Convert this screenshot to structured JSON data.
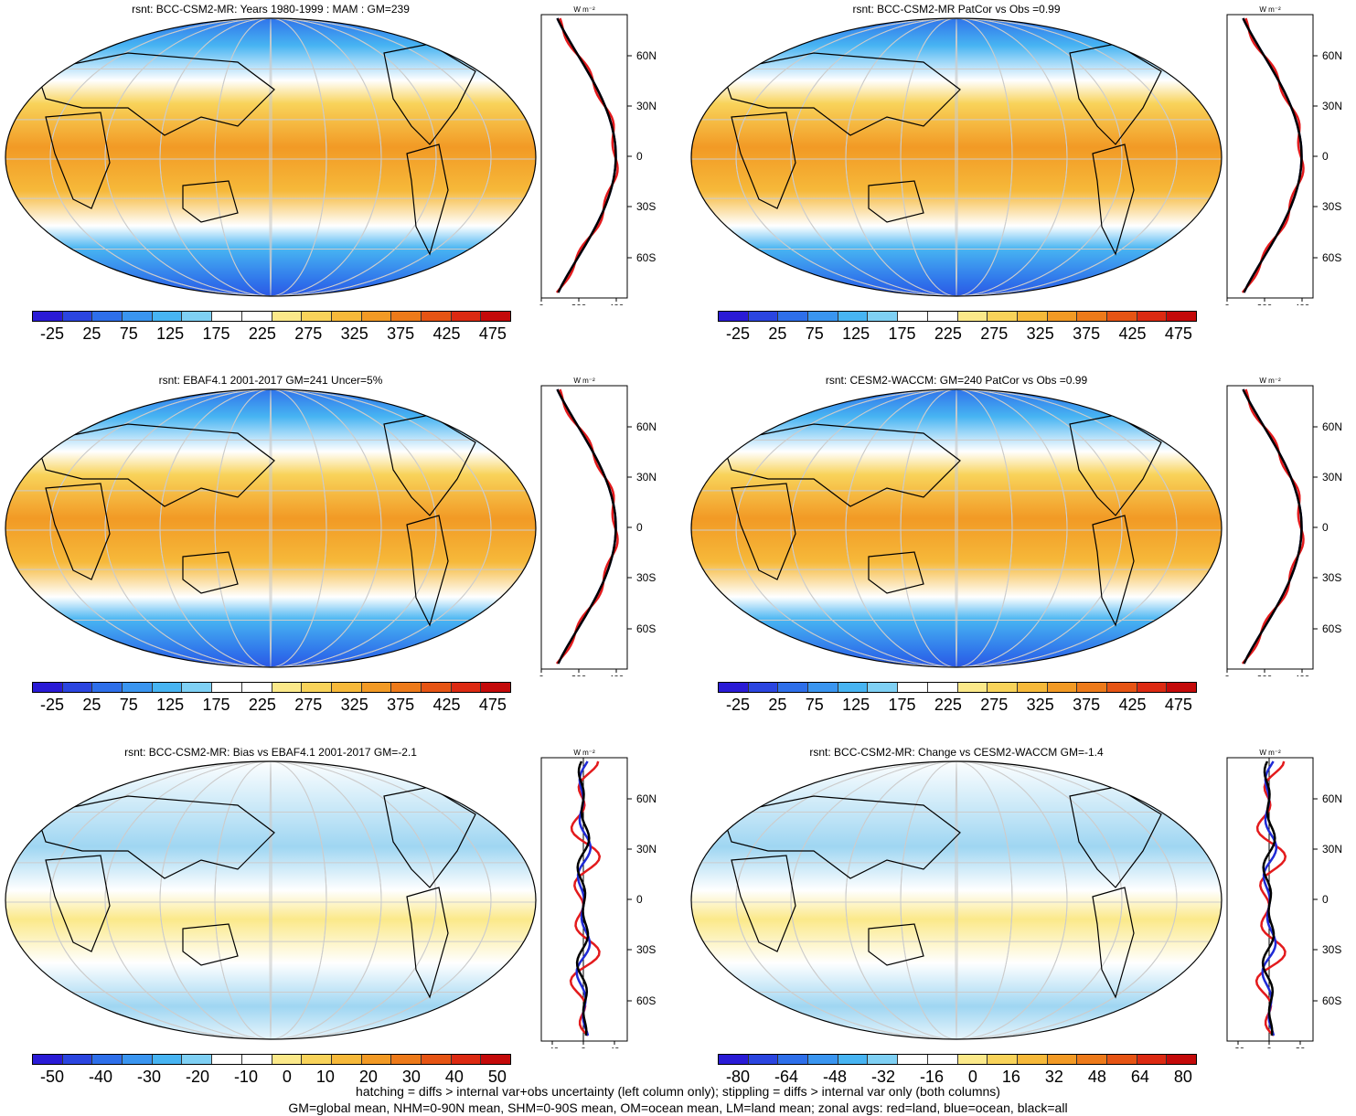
{
  "panels": [
    {
      "title": "rsnt: BCC-CSM2-MR: Years 1980-1999 : MAM : GM=239",
      "cbar_labels": [
        "-25",
        "25",
        "75",
        "125",
        "175",
        "225",
        "275",
        "325",
        "375",
        "425",
        "475"
      ],
      "zonal_ticks": [
        "0",
        "200",
        "400"
      ],
      "lat_labels": [
        "60N",
        "30N",
        "0",
        "30S",
        "60S"
      ],
      "unit": "W m⁻²"
    },
    {
      "title": "rsnt: BCC-CSM2-MR PatCor vs Obs =0.99",
      "cbar_labels": [
        "-25",
        "25",
        "75",
        "125",
        "175",
        "225",
        "275",
        "325",
        "375",
        "425",
        "475"
      ],
      "zonal_ticks": [
        "0",
        "200",
        "400"
      ],
      "lat_labels": [
        "60N",
        "30N",
        "0",
        "30S",
        "60S"
      ],
      "unit": "W m⁻²"
    },
    {
      "title": "rsnt: EBAF4.1 2001-2017 GM=241 Uncer=5%",
      "cbar_labels": [
        "-25",
        "25",
        "75",
        "125",
        "175",
        "225",
        "275",
        "325",
        "375",
        "425",
        "475"
      ],
      "zonal_ticks": [
        "0",
        "200",
        "400"
      ],
      "lat_labels": [
        "60N",
        "30N",
        "0",
        "30S",
        "60S"
      ],
      "unit": "W m⁻²"
    },
    {
      "title": "rsnt: CESM2-WACCM: GM=240 PatCor vs Obs =0.99",
      "cbar_labels": [
        "-25",
        "25",
        "75",
        "125",
        "175",
        "225",
        "275",
        "325",
        "375",
        "425",
        "475"
      ],
      "zonal_ticks": [
        "0",
        "200",
        "400"
      ],
      "lat_labels": [
        "60N",
        "30N",
        "0",
        "30S",
        "60S"
      ],
      "unit": "W m⁻²"
    },
    {
      "title": "rsnt: BCC-CSM2-MR: Bias vs EBAF4.1 2001-2017 GM=-2.1",
      "cbar_labels": [
        "-50",
        "-40",
        "-30",
        "-20",
        "-10",
        "0",
        "10",
        "20",
        "30",
        "40",
        "50"
      ],
      "zonal_ticks": [
        "-40",
        "0",
        "40"
      ],
      "lat_labels": [
        "60N",
        "30N",
        "0",
        "30S",
        "60S"
      ],
      "unit": "W m⁻²"
    },
    {
      "title": "rsnt: BCC-CSM2-MR: Change vs CESM2-WACCM GM=-1.4",
      "cbar_labels": [
        "-80",
        "-64",
        "-48",
        "-32",
        "-16",
        "0",
        "16",
        "32",
        "48",
        "64",
        "80"
      ],
      "zonal_ticks": [
        "-20",
        "0",
        "20"
      ],
      "lat_labels": [
        "60N",
        "30N",
        "0",
        "30S",
        "60S"
      ],
      "unit": "W m⁻²"
    }
  ],
  "colors": {
    "cbar": [
      "#2a1bd6",
      "#2b45e0",
      "#2e6fea",
      "#3a95f0",
      "#47b4f2",
      "#7fd0f4",
      "#ffffff",
      "#ffffff",
      "#fbe98a",
      "#f8d35a",
      "#f6b93a",
      "#f29a25",
      "#ed7a1a",
      "#e65414",
      "#dc2a12",
      "#c40a0a"
    ],
    "land_line": "#000000",
    "zonal_land": "#e31a1c",
    "zonal_ocean": "#1f2ad6",
    "zonal_all": "#000000"
  },
  "footer": {
    "line1": "hatching = diffs > internal var+obs uncertainty (left column only); stippling = diffs > internal var only (both columns)",
    "line2": "GM=global mean, NHM=0-90N mean, SHM=0-90S mean, OM=ocean mean, LM=land mean; zonal avgs: red=land, blue=ocean, black=all"
  }
}
